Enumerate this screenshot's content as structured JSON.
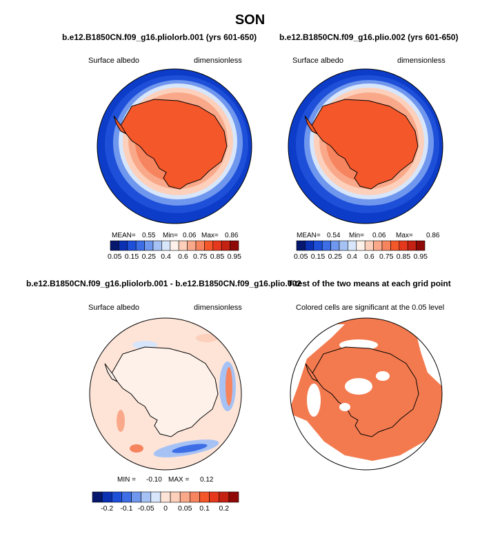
{
  "season": "SON",
  "panels": [
    {
      "title": "b.e12.B1850CN.f09_g16.pliolorb.001 (yrs 601-650)",
      "left_label": "Surface albedo",
      "right_label": "dimensionless",
      "stats": {
        "mean_label": "MEAN=",
        "mean": "0.55",
        "min_label": "Min=",
        "min": "0.06",
        "max_label": "Max=",
        "max": "0.86"
      }
    },
    {
      "title": "b.e12.B1850CN.f09_g16.plio.002 (yrs 601-650)",
      "left_label": "Surface albedo",
      "right_label": "dimensionless",
      "stats": {
        "mean_label": "MEAN=",
        "mean": "0.54",
        "min_label": "Min=",
        "min": "0.06",
        "max_label": "Max=",
        "max": "0.86"
      }
    },
    {
      "title": "b.e12.B1850CN.f09_g16.pliolorb.001 - b.e12.B1850CN.f09_g16.plio.002",
      "left_label": "Surface albedo",
      "right_label": "dimensionless",
      "stats": {
        "min_label": "MIN =",
        "min": "-0.10",
        "max_label": "MAX =",
        "max": "0.12"
      }
    },
    {
      "title": "T-test of the two means at each grid point",
      "subtitle": "Colored cells are significant at the 0.05 level"
    }
  ],
  "colors": {
    "land": "#f4572a",
    "ocean_edge": "#0c3cc8",
    "sig": "#f37a4f",
    "diff_bg": "#fde4d7"
  },
  "chart_data": [
    {
      "type": "heatmap",
      "title": "b.e12.B1850CN.f09_g16.pliolorb.001 (yrs 601-650)",
      "variable": "Surface albedo",
      "units": "dimensionless",
      "projection": "south polar stereographic",
      "mean": 0.55,
      "min": 0.06,
      "max": 0.86,
      "colorbar_levels": [
        0.05,
        0.15,
        0.25,
        0.4,
        0.6,
        0.75,
        0.85,
        0.95
      ],
      "colorbar_colors": [
        "#06186e",
        "#0a30b4",
        "#1e4fd8",
        "#3d6ee6",
        "#6f97ee",
        "#a6c2f5",
        "#d8e6fb",
        "#fdf1ea",
        "#fcd0bb",
        "#f9a98a",
        "#f6845f",
        "#f4572a",
        "#e5381c",
        "#c52214",
        "#8f0a07"
      ]
    },
    {
      "type": "heatmap",
      "title": "b.e12.B1850CN.f09_g16.plio.002 (yrs 601-650)",
      "variable": "Surface albedo",
      "units": "dimensionless",
      "projection": "south polar stereographic",
      "mean": 0.54,
      "min": 0.06,
      "max": 0.86,
      "colorbar_levels": [
        0.05,
        0.15,
        0.25,
        0.4,
        0.6,
        0.75,
        0.85,
        0.95
      ],
      "colorbar_colors": [
        "#06186e",
        "#0a30b4",
        "#1e4fd8",
        "#3d6ee6",
        "#6f97ee",
        "#a6c2f5",
        "#d8e6fb",
        "#fdf1ea",
        "#fcd0bb",
        "#f9a98a",
        "#f6845f",
        "#f4572a",
        "#e5381c",
        "#c52214",
        "#8f0a07"
      ]
    },
    {
      "type": "heatmap",
      "title": "b.e12.B1850CN.f09_g16.pliolorb.001 - b.e12.B1850CN.f09_g16.plio.002",
      "variable": "Surface albedo",
      "units": "dimensionless",
      "projection": "south polar stereographic",
      "min": -0.1,
      "max": 0.12,
      "colorbar_levels": [
        "-0.2",
        "-0.1",
        "-0.05",
        "0",
        "0.05",
        "0.1",
        "0.2"
      ],
      "colorbar_colors": [
        "#06186e",
        "#0a30b4",
        "#1e4fd8",
        "#3d6ee6",
        "#6f97ee",
        "#a6c2f5",
        "#d8e6fb",
        "#fde4d7",
        "#fcd0bb",
        "#f9a98a",
        "#f6845f",
        "#f4572a",
        "#e5381c",
        "#c52214",
        "#8f0a07"
      ]
    },
    {
      "type": "heatmap",
      "title": "T-test of the two means at each grid point",
      "subtitle": "Colored cells are significant at the 0.05 level",
      "projection": "south polar stereographic",
      "significance_level": 0.05
    }
  ]
}
